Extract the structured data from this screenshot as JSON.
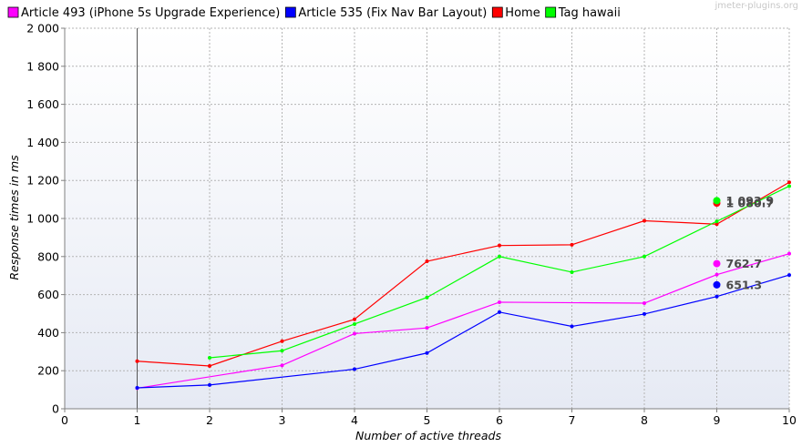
{
  "watermark": "jmeter-plugins.org",
  "chart_data": {
    "type": "line",
    "xlabel": "Number of active threads",
    "ylabel": "Response times in ms",
    "xlim": [
      0,
      10
    ],
    "ylim": [
      0,
      2000
    ],
    "x_ticks": [
      "0",
      "1",
      "2",
      "3",
      "4",
      "5",
      "6",
      "7",
      "8",
      "9",
      "10"
    ],
    "y_ticks": [
      "0",
      "200",
      "400",
      "600",
      "800",
      "1 000",
      "1 200",
      "1 400",
      "1 600",
      "1 800",
      "2 000"
    ],
    "grid": true,
    "legend_position": "top",
    "marker_line_x": 1,
    "series": [
      {
        "name": "Article 493 (iPhone 5s Upgrade Experience)",
        "color": "#ff00ff",
        "x": [
          1,
          3,
          4,
          5,
          6,
          8,
          9,
          10
        ],
        "y": [
          108,
          228,
          395,
          425,
          560,
          555,
          705,
          815
        ],
        "average": 762.7,
        "average_label": "762.7"
      },
      {
        "name": "Article 535 (Fix Nav Bar Layout)",
        "color": "#0000ff",
        "x": [
          1,
          2,
          4,
          5,
          6,
          7,
          8,
          9,
          10
        ],
        "y": [
          110,
          125,
          208,
          293,
          508,
          433,
          498,
          590,
          703
        ],
        "average": 651.3,
        "average_label": "651.3"
      },
      {
        "name": "Home",
        "color": "#ff0000",
        "x": [
          1,
          2,
          3,
          4,
          5,
          6,
          7,
          8,
          9,
          10
        ],
        "y": [
          250,
          225,
          355,
          470,
          775,
          858,
          862,
          988,
          970,
          1190
        ],
        "average": 1080.7,
        "average_label": "1 080.7"
      },
      {
        "name": "Tag hawaii",
        "color": "#00ff00",
        "x": [
          2,
          3,
          4,
          5,
          6,
          7,
          8,
          9,
          10
        ],
        "y": [
          268,
          305,
          445,
          585,
          800,
          718,
          800,
          985,
          1170
        ],
        "average": 1093.9,
        "average_label": "1 093.9"
      }
    ]
  }
}
